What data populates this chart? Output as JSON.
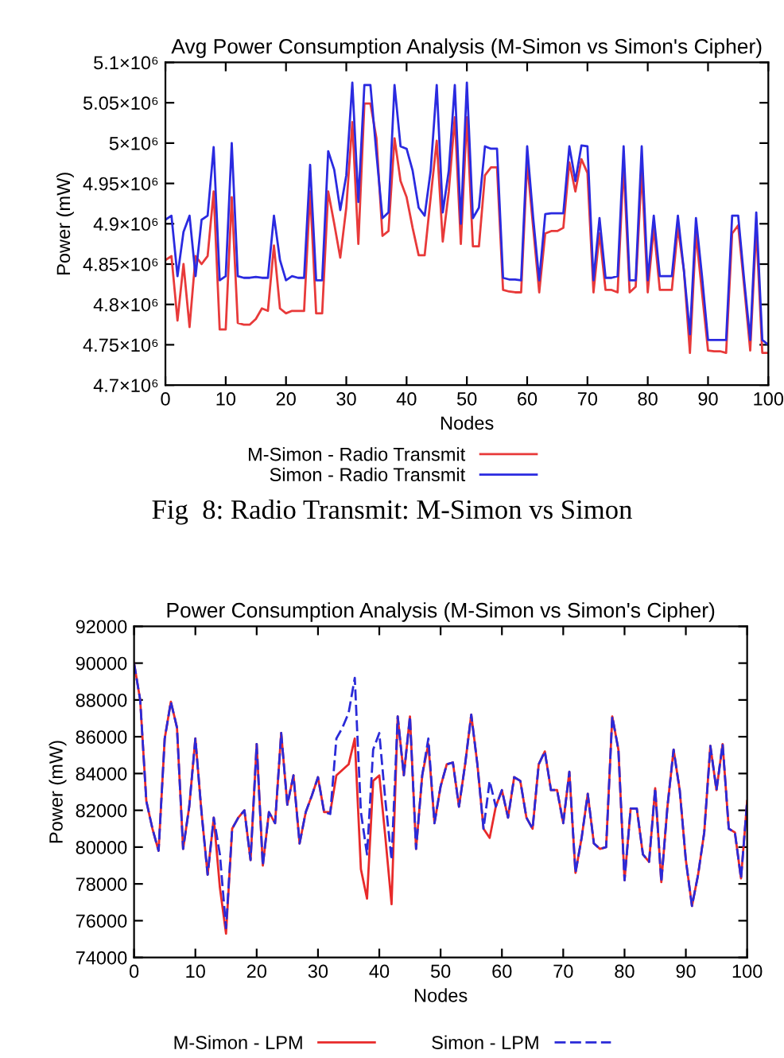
{
  "chart_data": [
    {
      "type": "line",
      "title": "Avg Power Consumption Analysis (M-Simon vs Simon's Cipher)",
      "xlabel": "Nodes",
      "ylabel": "Power (mW)",
      "x": [
        0,
        1,
        2,
        3,
        4,
        5,
        6,
        7,
        8,
        9,
        10,
        11,
        12,
        13,
        14,
        15,
        16,
        17,
        18,
        19,
        20,
        21,
        22,
        23,
        24,
        25,
        26,
        27,
        28,
        29,
        30,
        31,
        32,
        33,
        34,
        35,
        36,
        37,
        38,
        39,
        40,
        41,
        42,
        43,
        44,
        45,
        46,
        47,
        48,
        49,
        50,
        51,
        52,
        53,
        54,
        55,
        56,
        57,
        58,
        59,
        60,
        61,
        62,
        63,
        64,
        65,
        66,
        67,
        68,
        69,
        70,
        71,
        72,
        73,
        74,
        75,
        76,
        77,
        78,
        79,
        80,
        81,
        82,
        83,
        84,
        85,
        86,
        87,
        88,
        89,
        90,
        91,
        92,
        93,
        94,
        95,
        96,
        97,
        98,
        99,
        100
      ],
      "series": [
        {
          "name": "M-Simon - Radio Transmit",
          "color": "#e83a3a",
          "values": [
            4855000,
            4860000,
            4780000,
            4850000,
            4772000,
            4860000,
            4850000,
            4860000,
            4940000,
            4769000,
            4769000,
            4933000,
            4777000,
            4775000,
            4775000,
            4782000,
            4795000,
            4792000,
            4873000,
            4795000,
            4789000,
            4792000,
            4792000,
            4792000,
            4940000,
            4789000,
            4789000,
            4940000,
            4900000,
            4858000,
            4920000,
            5026000,
            4875000,
            5049000,
            5049000,
            5006000,
            4885000,
            4891000,
            5006000,
            4953000,
            4933000,
            4895000,
            4861000,
            4861000,
            4933000,
            5003000,
            4878000,
            4940000,
            5032000,
            4875000,
            5032000,
            4872000,
            4872000,
            4960000,
            4970000,
            4970000,
            4818000,
            4816000,
            4815000,
            4815000,
            4976000,
            4895000,
            4815000,
            4888000,
            4891000,
            4891000,
            4895000,
            4976000,
            4940000,
            4980000,
            4963000,
            4815000,
            4888000,
            4818000,
            4818000,
            4815000,
            4973000,
            4815000,
            4822000,
            4966000,
            4815000,
            4895000,
            4818000,
            4818000,
            4818000,
            4895000,
            4842000,
            4740000,
            4888000,
            4815000,
            4743000,
            4742000,
            4742000,
            4740000,
            4888000,
            4898000,
            4822000,
            4743000,
            4895000,
            4740000,
            4740000
          ]
        },
        {
          "name": "Simon - Radio Transmit",
          "color": "#2a2ae0",
          "values": [
            4905000,
            4910000,
            4835000,
            4890000,
            4910000,
            4835000,
            4905000,
            4910000,
            4995000,
            4830000,
            4835000,
            5000000,
            4835000,
            4833000,
            4833000,
            4834000,
            4833000,
            4833000,
            4910000,
            4855000,
            4830000,
            4835000,
            4833000,
            4833000,
            4973000,
            4830000,
            4830000,
            4990000,
            4967000,
            4917000,
            4960000,
            5075000,
            4927000,
            5072000,
            5072000,
            4987000,
            4907000,
            4914000,
            5072000,
            4996000,
            4993000,
            4966000,
            4920000,
            4910000,
            4966000,
            5072000,
            4914000,
            4966000,
            5072000,
            4900000,
            5075000,
            4907000,
            4920000,
            4996000,
            4993000,
            4993000,
            4833000,
            4831000,
            4831000,
            4830000,
            4996000,
            4907000,
            4830000,
            4912000,
            4913000,
            4913000,
            4913000,
            4996000,
            4953000,
            4997000,
            4996000,
            4830000,
            4907000,
            4833000,
            4833000,
            4835000,
            4996000,
            4830000,
            4830000,
            4996000,
            4830000,
            4910000,
            4835000,
            4835000,
            4835000,
            4910000,
            4842000,
            4763000,
            4907000,
            4835000,
            4756000,
            4756000,
            4756000,
            4756000,
            4910000,
            4910000,
            4830000,
            4756000,
            4914000,
            4756000,
            4750000
          ]
        }
      ],
      "xlim": [
        0,
        100
      ],
      "xticks": [
        0,
        10,
        20,
        30,
        40,
        50,
        60,
        70,
        80,
        90,
        100
      ],
      "ylim": [
        4700000,
        5100000
      ],
      "yticks": [
        {
          "value": 4700000,
          "label": "4.7×10⁶"
        },
        {
          "value": 4750000,
          "label": "4.75×10⁶"
        },
        {
          "value": 4800000,
          "label": "4.8×10⁶"
        },
        {
          "value": 4850000,
          "label": "4.85×10⁶"
        },
        {
          "value": 4900000,
          "label": "4.9×10⁶"
        },
        {
          "value": 4950000,
          "label": "4.95×10⁶"
        },
        {
          "value": 5000000,
          "label": "5×10⁶"
        },
        {
          "value": 5050000,
          "label": "5.05×10⁶"
        },
        {
          "value": 5100000,
          "label": "5.1×10⁶"
        }
      ],
      "grid": false,
      "legend": "bottom",
      "marker": "none",
      "line_style": "solid",
      "annotations": [
        "Fig  8: Radio Transmit: M-Simon vs Simon"
      ]
    },
    {
      "type": "line",
      "title": "Power Consumption Analysis (M-Simon vs Simon's Cipher)",
      "xlabel": "Nodes",
      "ylabel": "Power (mW)",
      "x": [
        0,
        1,
        2,
        3,
        4,
        5,
        6,
        7,
        8,
        9,
        10,
        11,
        12,
        13,
        14,
        15,
        16,
        17,
        18,
        19,
        20,
        21,
        22,
        23,
        24,
        25,
        26,
        27,
        28,
        29,
        30,
        31,
        32,
        33,
        34,
        35,
        36,
        37,
        38,
        39,
        40,
        41,
        42,
        43,
        44,
        45,
        46,
        47,
        48,
        49,
        50,
        51,
        52,
        53,
        54,
        55,
        56,
        57,
        58,
        59,
        60,
        61,
        62,
        63,
        64,
        65,
        66,
        67,
        68,
        69,
        70,
        71,
        72,
        73,
        74,
        75,
        76,
        77,
        78,
        79,
        80,
        81,
        82,
        83,
        84,
        85,
        86,
        87,
        88,
        89,
        90,
        91,
        92,
        93,
        94,
        95,
        96,
        97,
        98,
        99,
        100
      ],
      "series": [
        {
          "name": "M-Simon - LPM",
          "color": "#e82a2a",
          "values": [
            90000,
            88000,
            82500,
            81000,
            79800,
            85900,
            87900,
            86500,
            79900,
            82200,
            85900,
            81900,
            78500,
            81600,
            77800,
            75300,
            81000,
            81600,
            82000,
            79300,
            85600,
            79000,
            81900,
            81300,
            86200,
            82300,
            83900,
            80200,
            81900,
            82800,
            83800,
            81900,
            81900,
            83900,
            84200,
            84500,
            85900,
            78800,
            77200,
            83600,
            83900,
            80500,
            76900,
            87100,
            83900,
            87100,
            79900,
            83900,
            85600,
            81300,
            83300,
            84500,
            84600,
            82200,
            84500,
            87200,
            84500,
            81000,
            80500,
            82200,
            83100,
            81600,
            83800,
            83600,
            81600,
            81000,
            84500,
            85200,
            83100,
            83100,
            81300,
            84100,
            78600,
            80500,
            82900,
            80200,
            79900,
            80000,
            87100,
            85300,
            78200,
            82100,
            82100,
            79600,
            79200,
            83200,
            78100,
            82200,
            85300,
            83100,
            79300,
            76800,
            78500,
            80800,
            85500,
            83100,
            85600,
            81000,
            80800,
            78300,
            82500
          ]
        },
        {
          "name": "Simon - LPM",
          "color": "#2a2ad8",
          "line_style": "dashed",
          "values": [
            90000,
            88000,
            82500,
            81000,
            79800,
            85900,
            87900,
            86500,
            79900,
            82200,
            85900,
            81900,
            78500,
            81600,
            79600,
            75600,
            81000,
            81600,
            82000,
            79300,
            85600,
            79000,
            81900,
            81300,
            86200,
            82300,
            83900,
            80200,
            81900,
            82800,
            83800,
            81900,
            81800,
            85900,
            86500,
            87300,
            89200,
            81900,
            79600,
            85300,
            86200,
            82500,
            79300,
            87100,
            83900,
            87100,
            79900,
            83900,
            85900,
            81300,
            83300,
            84500,
            84600,
            82200,
            84500,
            87200,
            84500,
            81000,
            83600,
            82200,
            83100,
            81600,
            83800,
            83600,
            81600,
            81000,
            84500,
            85200,
            83100,
            83100,
            81300,
            84100,
            78600,
            80500,
            82900,
            80200,
            79900,
            80000,
            87100,
            85300,
            78200,
            82100,
            82100,
            79600,
            79200,
            83200,
            78100,
            82200,
            85300,
            83100,
            79300,
            76800,
            78500,
            80800,
            85500,
            83100,
            85600,
            81000,
            80800,
            78300,
            82500
          ]
        }
      ],
      "xlim": [
        0,
        100
      ],
      "xticks": [
        0,
        10,
        20,
        30,
        40,
        50,
        60,
        70,
        80,
        90,
        100
      ],
      "ylim": [
        74000,
        92000
      ],
      "yticks": [
        74000,
        76000,
        78000,
        80000,
        82000,
        84000,
        86000,
        88000,
        90000,
        92000
      ],
      "grid": false,
      "legend": "bottom",
      "marker": "none",
      "line_style": "solid"
    }
  ]
}
